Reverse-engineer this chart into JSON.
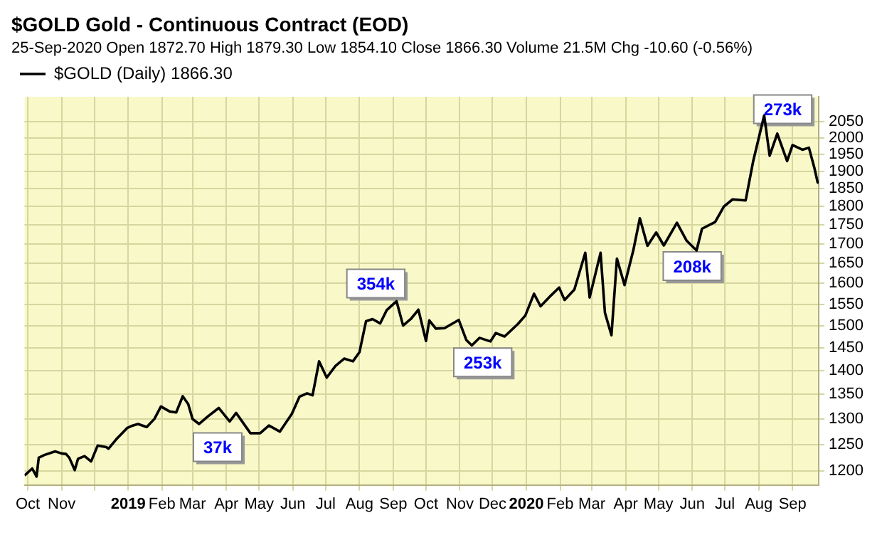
{
  "chart_data": {
    "type": "line",
    "title": "$GOLD Gold - Continuous Contract (EOD)",
    "subtitle": "25-Sep-2020  Open 1872.70  High 1879.30  Low 1854.10  Close 1866.30  Volume 21.5M  Chg -10.60 (-0.56%)",
    "series": [
      {
        "name": "$GOLD (Daily) 1866.30",
        "color": "#000000",
        "x": [
          "2018-09-28",
          "2018-10-05",
          "2018-10-09",
          "2018-10-11",
          "2018-10-16",
          "2018-10-26",
          "2018-11-01",
          "2018-11-05",
          "2018-11-08",
          "2018-11-13",
          "2018-11-16",
          "2018-11-22",
          "2018-11-28",
          "2018-12-04",
          "2018-12-12",
          "2018-12-14",
          "2018-12-21",
          "2018-12-31",
          "2019-01-04",
          "2019-01-10",
          "2019-01-18",
          "2019-01-25",
          "2019-01-31",
          "2019-02-08",
          "2019-02-14",
          "2019-02-20",
          "2019-02-25",
          "2019-03-01",
          "2019-03-07",
          "2019-03-15",
          "2019-03-25",
          "2019-04-04",
          "2019-04-10",
          "2019-04-23",
          "2019-05-02",
          "2019-05-10",
          "2019-05-20",
          "2019-05-31",
          "2019-06-07",
          "2019-06-14",
          "2019-06-19",
          "2019-06-25",
          "2019-07-02",
          "2019-07-10",
          "2019-07-18",
          "2019-07-26",
          "2019-08-01",
          "2019-08-07",
          "2019-08-13",
          "2019-08-20",
          "2019-08-26",
          "2019-09-04",
          "2019-09-10",
          "2019-09-17",
          "2019-09-24",
          "2019-10-01",
          "2019-10-04",
          "2019-10-10",
          "2019-10-18",
          "2019-10-31",
          "2019-11-07",
          "2019-11-12",
          "2019-11-19",
          "2019-11-29",
          "2019-12-04",
          "2019-12-12",
          "2019-12-24",
          "2019-12-31",
          "2020-01-08",
          "2020-01-14",
          "2020-01-24",
          "2020-01-31",
          "2020-02-05",
          "2020-02-14",
          "2020-02-24",
          "2020-02-28",
          "2020-03-09",
          "2020-03-13",
          "2020-03-19",
          "2020-03-24",
          "2020-03-31",
          "2020-04-08",
          "2020-04-14",
          "2020-04-21",
          "2020-04-29",
          "2020-05-06",
          "2020-05-18",
          "2020-05-27",
          "2020-06-05",
          "2020-06-10",
          "2020-06-22",
          "2020-06-30",
          "2020-07-08",
          "2020-07-20",
          "2020-07-27",
          "2020-08-06",
          "2020-08-11",
          "2020-08-18",
          "2020-08-27",
          "2020-09-01",
          "2020-09-10",
          "2020-09-16",
          "2020-09-21",
          "2020-09-24",
          "2020-09-25"
        ],
        "values": [
          1192,
          1205,
          1190,
          1225,
          1230,
          1237,
          1233,
          1232,
          1225,
          1202,
          1223,
          1228,
          1218,
          1248,
          1245,
          1242,
          1260,
          1282,
          1286,
          1290,
          1284,
          1300,
          1325,
          1315,
          1313,
          1346,
          1330,
          1300,
          1290,
          1305,
          1322,
          1295,
          1312,
          1272,
          1272,
          1287,
          1275,
          1310,
          1345,
          1352,
          1348,
          1420,
          1385,
          1410,
          1426,
          1420,
          1440,
          1510,
          1515,
          1505,
          1536,
          1557,
          1500,
          1515,
          1537,
          1465,
          1512,
          1493,
          1494,
          1513,
          1467,
          1455,
          1472,
          1464,
          1483,
          1475,
          1503,
          1523,
          1575,
          1545,
          1572,
          1590,
          1560,
          1585,
          1677,
          1566,
          1677,
          1530,
          1478,
          1662,
          1596,
          1683,
          1768,
          1695,
          1730,
          1696,
          1756,
          1708,
          1683,
          1740,
          1758,
          1800,
          1820,
          1817,
          1931,
          2070,
          1946,
          2013,
          1930,
          1978,
          1964,
          1970,
          1910,
          1868,
          1866.3
        ]
      }
    ],
    "xlim": [
      "2018-09-28",
      "2020-09-25"
    ],
    "xticks": [
      {
        "value": "2018-10-01",
        "label": "Oct"
      },
      {
        "value": "2018-11-01",
        "label": "Nov"
      },
      {
        "value": "2018-12-01",
        "label": null
      },
      {
        "value": "2019-01-01",
        "label": "2019"
      },
      {
        "value": "2019-02-01",
        "label": "Feb"
      },
      {
        "value": "2019-03-01",
        "label": "Mar"
      },
      {
        "value": "2019-04-01",
        "label": "Apr"
      },
      {
        "value": "2019-05-01",
        "label": "May"
      },
      {
        "value": "2019-06-01",
        "label": "Jun"
      },
      {
        "value": "2019-07-01",
        "label": "Jul"
      },
      {
        "value": "2019-08-01",
        "label": "Aug"
      },
      {
        "value": "2019-09-01",
        "label": "Sep"
      },
      {
        "value": "2019-10-01",
        "label": "Oct"
      },
      {
        "value": "2019-11-01",
        "label": "Nov"
      },
      {
        "value": "2019-12-01",
        "label": "Dec"
      },
      {
        "value": "2020-01-01",
        "label": "2020"
      },
      {
        "value": "2020-02-01",
        "label": "Feb"
      },
      {
        "value": "2020-03-01",
        "label": "Mar"
      },
      {
        "value": "2020-04-01",
        "label": "Apr"
      },
      {
        "value": "2020-05-01",
        "label": "May"
      },
      {
        "value": "2020-06-01",
        "label": "Jun"
      },
      {
        "value": "2020-07-01",
        "label": "Jul"
      },
      {
        "value": "2020-08-01",
        "label": "Aug"
      },
      {
        "value": "2020-09-01",
        "label": "Sep"
      }
    ],
    "ylim": [
      1175,
      2130
    ],
    "yticks": [
      1200,
      1250,
      1300,
      1350,
      1400,
      1450,
      1500,
      1550,
      1600,
      1650,
      1700,
      1750,
      1800,
      1850,
      1900,
      1950,
      2000,
      2050
    ],
    "log": "y",
    "grid": true,
    "legend": "top left",
    "annotations": [
      {
        "text": "37k",
        "x": "2019-03-24",
        "y": 1245
      },
      {
        "text": "354k",
        "x": "2019-08-16",
        "y": 1600
      },
      {
        "text": "253k",
        "x": "2019-11-22",
        "y": 1418
      },
      {
        "text": "208k",
        "x": "2020-06-01",
        "y": 1643
      },
      {
        "text": "273k",
        "x": "2020-08-23",
        "y": 2090
      }
    ]
  }
}
